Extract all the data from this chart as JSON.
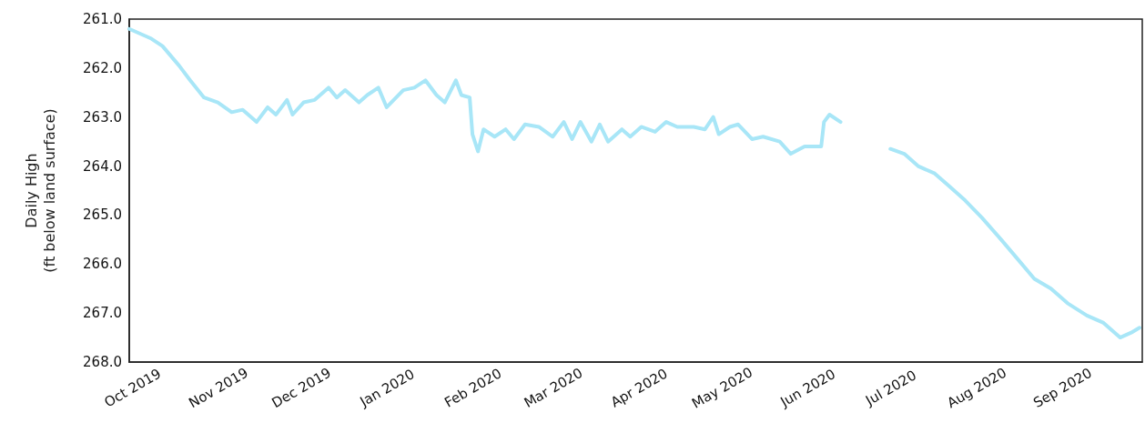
{
  "chart_data": {
    "type": "line",
    "ylabel": "Daily High\n(ft below land surface)",
    "x": [
      "2019-10-01",
      "2019-10-09",
      "2019-10-13",
      "2019-10-19",
      "2019-10-23",
      "2019-10-28",
      "2019-11-02",
      "2019-11-07",
      "2019-11-11",
      "2019-11-16",
      "2019-11-20",
      "2019-11-23",
      "2019-11-27",
      "2019-11-29",
      "2019-12-03",
      "2019-12-07",
      "2019-12-12",
      "2019-12-15",
      "2019-12-18",
      "2019-12-23",
      "2019-12-26",
      "2019-12-30",
      "2020-01-02",
      "2020-01-08",
      "2020-01-12",
      "2020-01-16",
      "2020-01-20",
      "2020-01-23",
      "2020-01-27",
      "2020-01-29",
      "2020-02-01",
      "2020-02-02",
      "2020-02-04",
      "2020-02-06",
      "2020-02-10",
      "2020-02-14",
      "2020-02-17",
      "2020-02-21",
      "2020-02-26",
      "2020-03-02",
      "2020-03-06",
      "2020-03-09",
      "2020-03-12",
      "2020-03-16",
      "2020-03-19",
      "2020-03-22",
      "2020-03-27",
      "2020-03-30",
      "2020-04-03",
      "2020-04-08",
      "2020-04-12",
      "2020-04-16",
      "2020-04-22",
      "2020-04-26",
      "2020-04-29",
      "2020-05-01",
      "2020-05-05",
      "2020-05-08",
      "2020-05-13",
      "2020-05-17",
      "2020-05-23",
      "2020-05-27",
      "2020-06-01",
      "2020-06-04",
      "2020-06-07",
      "2020-06-08",
      "2020-06-10",
      "2020-06-14",
      "2020-06-20",
      "2020-07-02",
      "2020-07-07",
      "2020-07-12",
      "2020-07-18",
      "2020-07-23",
      "2020-07-29",
      "2020-08-04",
      "2020-08-11",
      "2020-08-17",
      "2020-08-23",
      "2020-08-29",
      "2020-09-04",
      "2020-09-11",
      "2020-09-17",
      "2020-09-23",
      "2020-09-27",
      "2020-09-30"
    ],
    "series": [
      {
        "color": "#a8e6f7",
        "values": [
          261.2,
          261.4,
          261.55,
          261.95,
          262.25,
          262.6,
          262.7,
          262.9,
          262.85,
          263.1,
          262.8,
          262.95,
          262.65,
          262.95,
          262.7,
          262.65,
          262.4,
          262.6,
          262.45,
          262.7,
          262.55,
          262.4,
          262.8,
          262.45,
          262.4,
          262.25,
          262.55,
          262.7,
          262.25,
          262.55,
          262.6,
          263.35,
          263.7,
          263.25,
          263.4,
          263.25,
          263.45,
          263.15,
          263.2,
          263.4,
          263.1,
          263.45,
          263.1,
          263.5,
          263.15,
          263.5,
          263.25,
          263.4,
          263.2,
          263.3,
          263.1,
          263.2,
          263.2,
          263.25,
          263.0,
          263.35,
          263.2,
          263.15,
          263.45,
          263.4,
          263.5,
          263.75,
          263.6,
          263.6,
          263.6,
          263.1,
          262.95,
          263.1,
          null,
          263.65,
          263.75,
          264.0,
          264.15,
          264.4,
          264.7,
          265.05,
          265.5,
          265.9,
          266.3,
          266.5,
          266.8,
          267.05,
          267.2,
          267.5,
          267.4,
          267.3
        ]
      }
    ],
    "xlim": [
      "2019-10-01",
      "2020-10-01"
    ],
    "xticks": [
      {
        "value": "2019-10-01",
        "label": "Oct 2019"
      },
      {
        "value": "2019-11-01",
        "label": "Nov 2019"
      },
      {
        "value": "2019-12-01",
        "label": "Dec 2019"
      },
      {
        "value": "2020-01-01",
        "label": "Jan 2020"
      },
      {
        "value": "2020-02-01",
        "label": "Feb 2020"
      },
      {
        "value": "2020-03-01",
        "label": "Mar 2020"
      },
      {
        "value": "2020-04-01",
        "label": "Apr 2020"
      },
      {
        "value": "2020-05-01",
        "label": "May 2020"
      },
      {
        "value": "2020-06-01",
        "label": "Jun 2020"
      },
      {
        "value": "2020-07-01",
        "label": "Jul 2020"
      },
      {
        "value": "2020-08-01",
        "label": "Aug 2020"
      },
      {
        "value": "2020-09-01",
        "label": "Sep 2020"
      }
    ],
    "ylim": [
      268,
      261
    ],
    "yticks": [
      {
        "value": 261,
        "label": "261.0"
      },
      {
        "value": 262,
        "label": "262.0"
      },
      {
        "value": 263,
        "label": "263.0"
      },
      {
        "value": 264,
        "label": "264.0"
      },
      {
        "value": 265,
        "label": "265.0"
      },
      {
        "value": 266,
        "label": "266.0"
      },
      {
        "value": 267,
        "label": "267.0"
      },
      {
        "value": 268,
        "label": "268.0"
      }
    ],
    "grid": false,
    "marker": "none",
    "line_style": "solid"
  }
}
